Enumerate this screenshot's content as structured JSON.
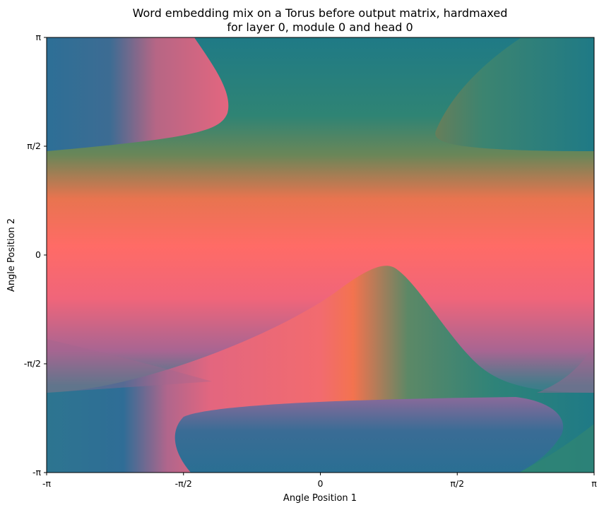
{
  "chart_data": {
    "type": "heatmap",
    "title": [
      "Word embedding mix on a Torus before output matrix, hardmaxed",
      "for layer 0, module 0 and head 0"
    ],
    "xlabel": "Angle Position 1",
    "ylabel": "Angle Position 2",
    "xlim": [
      -3.14159,
      3.14159
    ],
    "ylim": [
      -3.14159,
      3.14159
    ],
    "x_ticks": [
      {
        "value": -3.14159,
        "label": "-π"
      },
      {
        "value": -1.5708,
        "label": "-π/2"
      },
      {
        "value": 0,
        "label": "0"
      },
      {
        "value": 1.5708,
        "label": "π/2"
      },
      {
        "value": 3.14159,
        "label": "π"
      }
    ],
    "y_ticks": [
      {
        "value": -3.14159,
        "label": "-π"
      },
      {
        "value": -1.5708,
        "label": "-π/2"
      },
      {
        "value": 0,
        "label": "0"
      },
      {
        "value": 1.5708,
        "label": "π/2"
      },
      {
        "value": 3.14159,
        "label": "π"
      }
    ],
    "grid": false,
    "colors": {
      "teal": "#217a86",
      "blue": "#2d6f96",
      "green": "#4d8a6a",
      "pink": "#e3667f",
      "coral": "#ff6b66",
      "orange": "#f2784f",
      "purple": "#8a6a9a"
    }
  }
}
